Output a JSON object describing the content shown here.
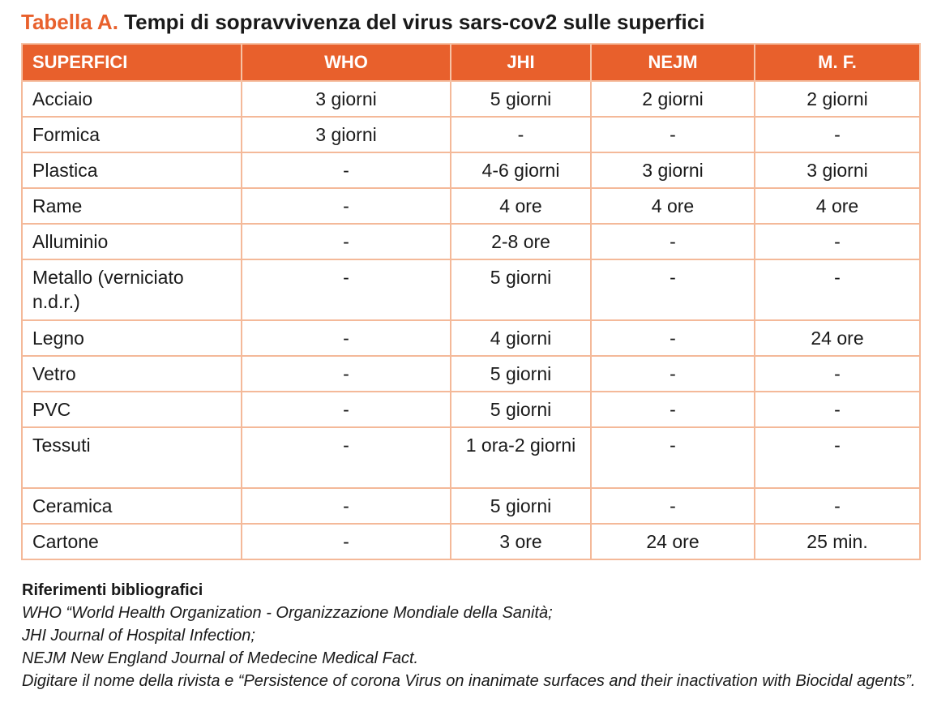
{
  "title": {
    "prefix": "Tabella A.",
    "text": "Tempi di sopravvivenza del virus sars-cov2 sulle superfici"
  },
  "table": {
    "headers": [
      "SUPERFICI",
      "WHO",
      "JHI",
      "NEJM",
      "M. F."
    ],
    "rows": [
      [
        "Acciaio",
        "3 giorni",
        "5 giorni",
        "2 giorni",
        "2 giorni"
      ],
      [
        "Formica",
        "3 giorni",
        "-",
        "-",
        "-"
      ],
      [
        "Plastica",
        "-",
        "4-6 giorni",
        "3 giorni",
        "3 giorni"
      ],
      [
        "Rame",
        "-",
        "4 ore",
        "4 ore",
        "4 ore"
      ],
      [
        "Alluminio",
        "-",
        "2-8 ore",
        "-",
        "-"
      ],
      [
        "Metallo (verniciato n.d.r.)",
        "-",
        "5 giorni",
        "-",
        "-"
      ],
      [
        "Legno",
        "-",
        "4 giorni",
        "-",
        "24 ore"
      ],
      [
        "Vetro",
        "-",
        "5 giorni",
        "-",
        "-"
      ],
      [
        "PVC",
        "-",
        "5 giorni",
        "-",
        "-"
      ],
      [
        "Tessuti",
        "-",
        "1 ora-2 giorni",
        "-",
        "-"
      ],
      [
        "Ceramica",
        "-",
        "5 giorni",
        "-",
        "-"
      ],
      [
        "Cartone",
        "-",
        "3 ore",
        "24 ore",
        "25 min."
      ]
    ]
  },
  "references": {
    "heading": "Riferimenti bibliografici",
    "lines": [
      "WHO “World Health Organization - Organizzazione Mondiale della Sanità;",
      "JHI Journal of Hospital Infection;",
      "NEJM New England Journal of Medecine Medical Fact.",
      "Digitare il nome della rivista e “Persistence of corona Virus on inanimate surfaces and their inactivation with Biocidal agents”."
    ]
  },
  "colors": {
    "accent": "#e8602c",
    "border": "#f4b999",
    "header_text": "#ffffff"
  }
}
